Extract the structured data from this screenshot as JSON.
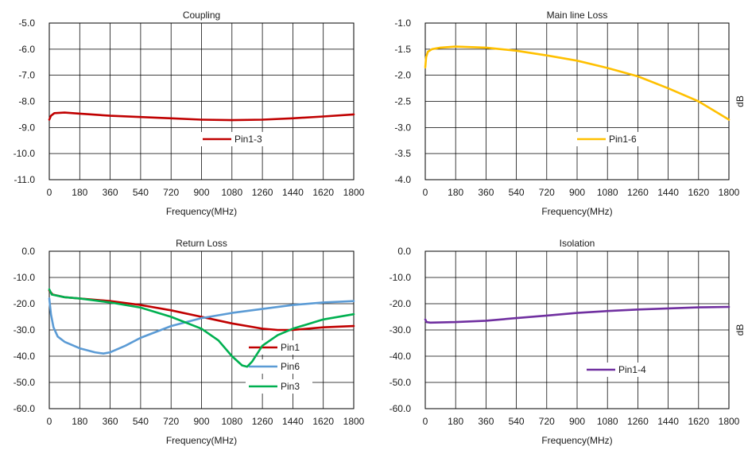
{
  "chart_data": [
    {
      "type": "line",
      "title": "Coupling",
      "xlabel": "Frequency(MHz)",
      "ylabel": "",
      "xlim": [
        0,
        1800
      ],
      "ylim": [
        -11.0,
        -5.0
      ],
      "x_ticks": [
        0,
        180,
        360,
        540,
        720,
        900,
        1080,
        1260,
        1440,
        1620,
        1800
      ],
      "y_ticks": [
        -11.0,
        -10.0,
        -9.0,
        -8.0,
        -7.0,
        -6.0,
        -5.0
      ],
      "y_tick_labels": [
        "-11.0",
        "-10.0",
        "-9.0",
        "-8.0",
        "-7.0",
        "-6.0",
        "-5.0"
      ],
      "grid": true,
      "legend_position": "center-right",
      "series": [
        {
          "name": "Pin1-3",
          "color": "#c00000",
          "points": [
            [
              0,
              -8.7
            ],
            [
              10,
              -8.55
            ],
            [
              30,
              -8.45
            ],
            [
              90,
              -8.43
            ],
            [
              180,
              -8.47
            ],
            [
              360,
              -8.55
            ],
            [
              540,
              -8.6
            ],
            [
              720,
              -8.65
            ],
            [
              900,
              -8.7
            ],
            [
              1080,
              -8.72
            ],
            [
              1260,
              -8.7
            ],
            [
              1440,
              -8.65
            ],
            [
              1620,
              -8.58
            ],
            [
              1800,
              -8.5
            ]
          ]
        }
      ]
    },
    {
      "type": "line",
      "title": "Main line Loss",
      "xlabel": "Frequency(MHz)",
      "ylabel": "dB",
      "xlim": [
        0,
        1800
      ],
      "ylim": [
        -4.0,
        -1.0
      ],
      "x_ticks": [
        0,
        180,
        360,
        540,
        720,
        900,
        1080,
        1260,
        1440,
        1620,
        1800
      ],
      "y_ticks": [
        -4.0,
        -3.5,
        -3.0,
        -2.5,
        -2.0,
        -1.5,
        -1.0
      ],
      "y_tick_labels": [
        "-4.0",
        "-3.5",
        "-3.0",
        "-2.5",
        "-2.0",
        "-1.5",
        "-1.0"
      ],
      "grid": true,
      "legend_position": "bottom-center",
      "series": [
        {
          "name": "Pin1-6",
          "color": "#ffc000",
          "points": [
            [
              0,
              -1.85
            ],
            [
              5,
              -1.65
            ],
            [
              15,
              -1.55
            ],
            [
              40,
              -1.5
            ],
            [
              90,
              -1.47
            ],
            [
              180,
              -1.45
            ],
            [
              360,
              -1.47
            ],
            [
              540,
              -1.53
            ],
            [
              720,
              -1.62
            ],
            [
              900,
              -1.72
            ],
            [
              1080,
              -1.86
            ],
            [
              1260,
              -2.02
            ],
            [
              1440,
              -2.25
            ],
            [
              1620,
              -2.5
            ],
            [
              1800,
              -2.85
            ]
          ]
        }
      ]
    },
    {
      "type": "line",
      "title": "Return Loss",
      "xlabel": "Frequency(MHz)",
      "ylabel": "",
      "xlim": [
        0,
        1800
      ],
      "ylim": [
        -60.0,
        0.0
      ],
      "x_ticks": [
        0,
        180,
        360,
        540,
        720,
        900,
        1080,
        1260,
        1440,
        1620,
        1800
      ],
      "y_ticks": [
        -60.0,
        -50.0,
        -40.0,
        -30.0,
        -20.0,
        -10.0,
        0.0
      ],
      "y_tick_labels": [
        "-60.0",
        "-50.0",
        "-40.0",
        "-30.0",
        "-20.0",
        "-10.0",
        "0.0"
      ],
      "grid": true,
      "legend_position": "bottom-right",
      "series": [
        {
          "name": "Pin1",
          "color": "#c00000",
          "points": [
            [
              0,
              -15
            ],
            [
              20,
              -16.5
            ],
            [
              90,
              -17.5
            ],
            [
              180,
              -18
            ],
            [
              360,
              -19
            ],
            [
              540,
              -20.5
            ],
            [
              720,
              -22.5
            ],
            [
              900,
              -25
            ],
            [
              1080,
              -27.5
            ],
            [
              1260,
              -29.5
            ],
            [
              1350,
              -30
            ],
            [
              1440,
              -30
            ],
            [
              1620,
              -29
            ],
            [
              1800,
              -28.5
            ]
          ]
        },
        {
          "name": "Pin6",
          "color": "#5b9bd5",
          "points": [
            [
              0,
              -18
            ],
            [
              10,
              -24
            ],
            [
              25,
              -29
            ],
            [
              50,
              -32.5
            ],
            [
              90,
              -34.5
            ],
            [
              180,
              -37
            ],
            [
              270,
              -38.5
            ],
            [
              320,
              -39
            ],
            [
              360,
              -38.5
            ],
            [
              450,
              -36
            ],
            [
              540,
              -33
            ],
            [
              720,
              -28.5
            ],
            [
              900,
              -25.5
            ],
            [
              1080,
              -23.5
            ],
            [
              1260,
              -22
            ],
            [
              1440,
              -20.5
            ],
            [
              1620,
              -19.5
            ],
            [
              1800,
              -19
            ]
          ]
        },
        {
          "name": "Pin3",
          "color": "#00b050",
          "points": [
            [
              0,
              -14.5
            ],
            [
              15,
              -16.5
            ],
            [
              90,
              -17.5
            ],
            [
              180,
              -18
            ],
            [
              360,
              -19.5
            ],
            [
              540,
              -21.5
            ],
            [
              720,
              -25
            ],
            [
              900,
              -29.5
            ],
            [
              1000,
              -34
            ],
            [
              1080,
              -40
            ],
            [
              1140,
              -43.5
            ],
            [
              1170,
              -44
            ],
            [
              1200,
              -42
            ],
            [
              1260,
              -36
            ],
            [
              1350,
              -32
            ],
            [
              1440,
              -29.5
            ],
            [
              1620,
              -26
            ],
            [
              1800,
              -24
            ]
          ]
        }
      ]
    },
    {
      "type": "line",
      "title": "Isolation",
      "xlabel": "Frequency(MHz)",
      "ylabel": "dB",
      "xlim": [
        0,
        1800
      ],
      "ylim": [
        -60.0,
        0.0
      ],
      "x_ticks": [
        0,
        180,
        360,
        540,
        720,
        900,
        1080,
        1260,
        1440,
        1620,
        1800
      ],
      "y_ticks": [
        -60.0,
        -50.0,
        -40.0,
        -30.0,
        -20.0,
        -10.0,
        0.0
      ],
      "y_tick_labels": [
        "-60.0",
        "-50.0",
        "-40.0",
        "-30.0",
        "-20.0",
        "-10.0",
        "0.0"
      ],
      "grid": true,
      "legend_position": "bottom-center",
      "series": [
        {
          "name": "Pin1-4",
          "color": "#7030a0",
          "points": [
            [
              0,
              -26
            ],
            [
              8,
              -27
            ],
            [
              30,
              -27.2
            ],
            [
              180,
              -27
            ],
            [
              360,
              -26.5
            ],
            [
              540,
              -25.5
            ],
            [
              720,
              -24.5
            ],
            [
              900,
              -23.5
            ],
            [
              1080,
              -22.8
            ],
            [
              1260,
              -22.2
            ],
            [
              1440,
              -21.8
            ],
            [
              1620,
              -21.4
            ],
            [
              1800,
              -21.2
            ]
          ]
        }
      ]
    }
  ]
}
